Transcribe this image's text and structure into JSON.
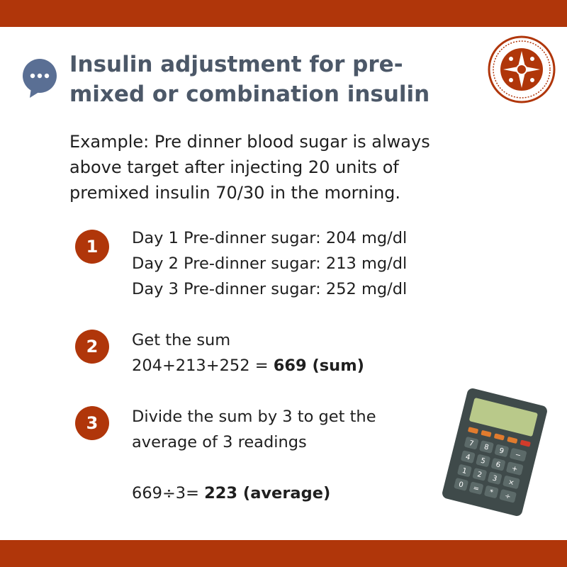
{
  "colors": {
    "accent": "#b0360a",
    "title": "#4c5868",
    "icon": "#5a6f94"
  },
  "header": {
    "title_line1": "Insulin adjustment for pre-",
    "title_line2": "mixed or combination insulin",
    "chat_icon": "chat-bubble-icon",
    "logo": "society-seal-logo"
  },
  "intro": {
    "line1": "Example: Pre dinner blood sugar is always",
    "line2": "above target after injecting 20 units of",
    "line3": "premixed insulin 70/30 in the morning."
  },
  "steps": [
    {
      "number": "1",
      "lines": [
        "Day 1 Pre-dinner sugar: 204 mg/dl",
        "Day 2 Pre-dinner sugar: 213 mg/dl",
        "Day 3 Pre-dinner sugar: 252 mg/dl"
      ]
    },
    {
      "number": "2",
      "line1": "Get the sum",
      "expr": "204+213+252 = ",
      "result": "669 (sum)"
    },
    {
      "number": "3",
      "line1": "Divide the sum by 3 to get the",
      "line2": "average of 3 readings",
      "expr": "669÷3= ",
      "result": "223 (average)"
    }
  ],
  "illustration": "calculator-icon"
}
